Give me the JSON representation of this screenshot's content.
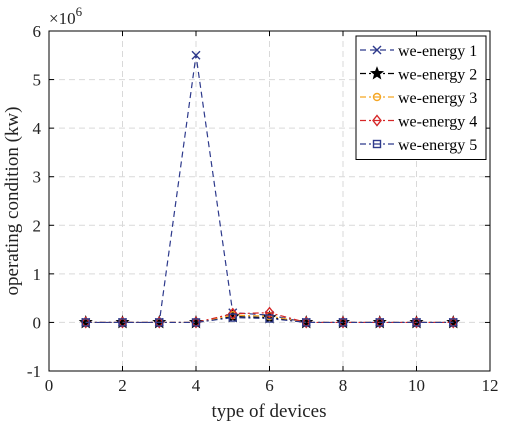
{
  "chart_data": {
    "type": "line",
    "title": "",
    "xlabel": "type of devices",
    "ylabel": "operating condition (kw)",
    "y_multiplier_label": "×10",
    "y_multiplier_exp": "6",
    "xlim": [
      0,
      12
    ],
    "ylim": [
      -1,
      6
    ],
    "xticks": [
      0,
      2,
      4,
      6,
      8,
      10,
      12
    ],
    "yticks": [
      -1,
      0,
      1,
      2,
      3,
      4,
      5,
      6
    ],
    "grid": true,
    "legend_position": "top-right",
    "x": [
      1,
      2,
      3,
      4,
      5,
      6,
      7,
      8,
      9,
      10,
      11
    ],
    "series": [
      {
        "name": "we-energy 1",
        "color": "#2e3a8c",
        "marker": "x",
        "dash": "6 4",
        "values": [
          0,
          0,
          0,
          5.5,
          0.2,
          0.15,
          0,
          0,
          0,
          0,
          0
        ]
      },
      {
        "name": "we-energy 2",
        "color": "#000000",
        "marker": "star",
        "dash": "6 3 2 3",
        "values": [
          0,
          0,
          0,
          0,
          0.12,
          0.1,
          0,
          0,
          0,
          0,
          0
        ]
      },
      {
        "name": "we-energy 3",
        "color": "#f5a623",
        "marker": "circle",
        "dash": "6 3 2 3",
        "values": [
          0,
          0,
          0,
          0,
          0.15,
          0.13,
          0,
          0,
          0,
          0,
          0
        ]
      },
      {
        "name": "we-energy 4",
        "color": "#d62728",
        "marker": "diamond",
        "dash": "6 3 2 3",
        "values": [
          0,
          0,
          0,
          0,
          0.18,
          0.2,
          0,
          0,
          0,
          0,
          0
        ]
      },
      {
        "name": "we-energy 5",
        "color": "#2e3a8c",
        "marker": "square",
        "dash": "6 3 2 3",
        "values": [
          0,
          0,
          0,
          0,
          0.1,
          0.08,
          0,
          0,
          0,
          0,
          0
        ]
      }
    ]
  }
}
